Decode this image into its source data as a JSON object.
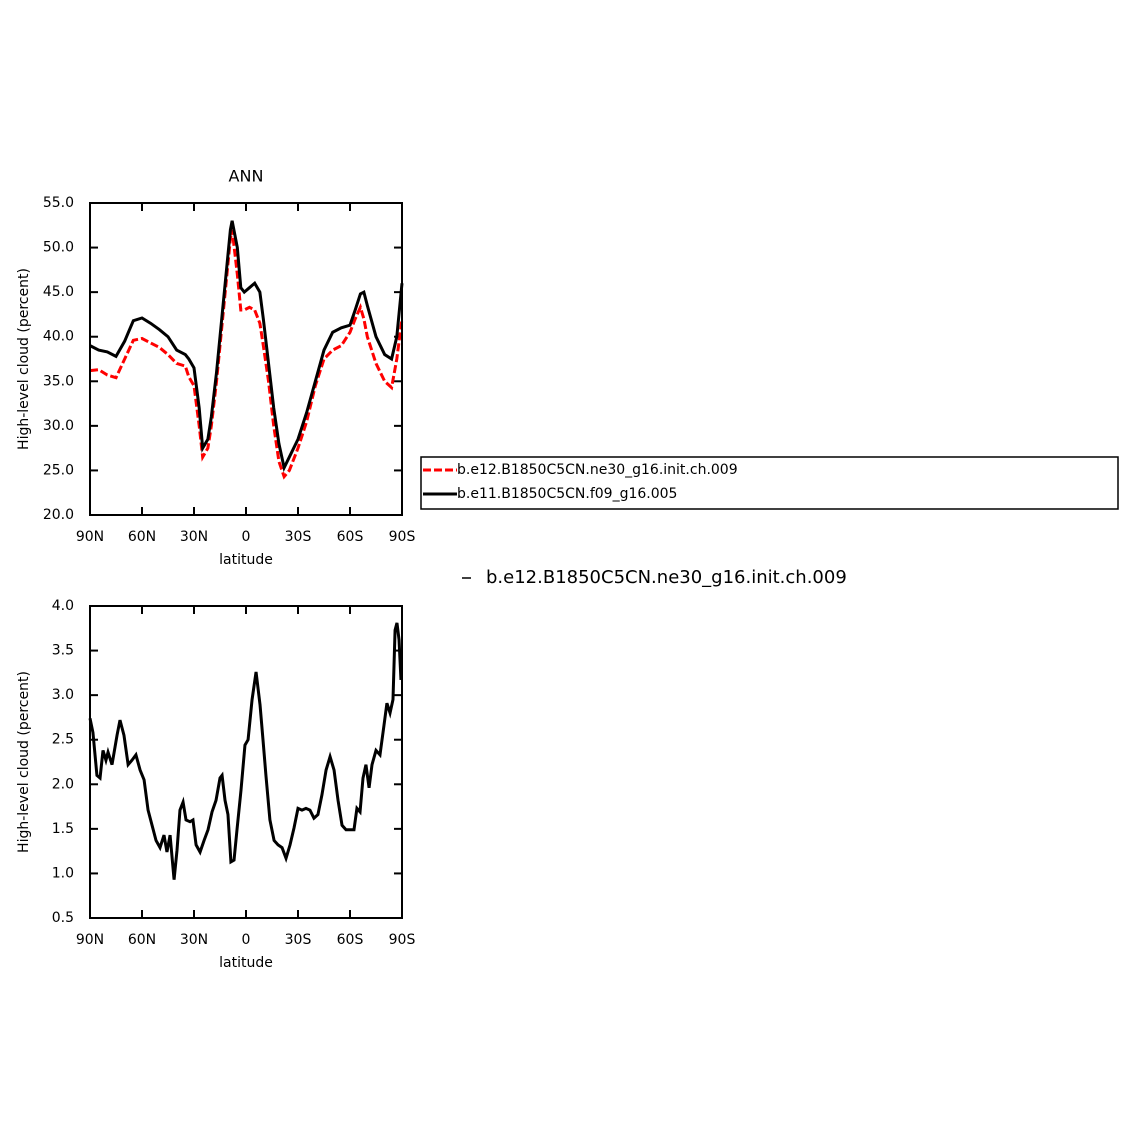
{
  "chart_data": [
    {
      "type": "line",
      "title": "ANN",
      "x_label": "latitude",
      "y_label": "High-level cloud (percent)",
      "x": [
        90,
        85,
        80,
        75,
        70,
        65,
        60,
        55,
        50,
        45,
        40,
        35,
        33,
        30,
        27,
        25,
        22,
        20,
        17,
        14,
        11,
        9,
        8,
        5,
        3,
        1,
        -2,
        -5,
        -8,
        -10,
        -13,
        -16,
        -19,
        -22,
        -25,
        -30,
        -35,
        -40,
        -45,
        -50,
        -55,
        -60,
        -63,
        -66,
        -68,
        -70,
        -75,
        -80,
        -84,
        -87,
        -90
      ],
      "series": [
        {
          "name": "b.e12.B1850C5CN.ne30_g16.init.ch.009",
          "color": "#ff0000",
          "dashed": true,
          "values": [
            36.2,
            36.3,
            35.7,
            35.4,
            37.5,
            39.6,
            39.8,
            39.3,
            38.8,
            38.0,
            37.0,
            36.7,
            35.5,
            34.5,
            30.0,
            26.5,
            27.5,
            30,
            35,
            41,
            47,
            51,
            52.0,
            47,
            43,
            43,
            43.3,
            43,
            41.5,
            39,
            35,
            30,
            26,
            24.3,
            25,
            27.5,
            30.5,
            34.5,
            37.5,
            38.5,
            39,
            40.5,
            42,
            43.3,
            42,
            40,
            37,
            35,
            34.3,
            37.5,
            42
          ]
        },
        {
          "name": "b.e11.B1850C5CN.f09_g16.005",
          "color": "#000000",
          "dashed": false,
          "values": [
            39.0,
            38.5,
            38.3,
            37.8,
            39.5,
            41.8,
            42.1,
            41.5,
            40.8,
            40.0,
            38.5,
            38.0,
            37.5,
            36.5,
            32,
            27.5,
            28.5,
            31,
            36,
            42,
            48,
            52,
            53,
            50,
            45.5,
            45,
            45.5,
            46,
            45,
            42,
            37,
            32,
            28,
            25.3,
            26.5,
            28.5,
            31.5,
            35,
            38.5,
            40.5,
            41,
            41.3,
            43,
            44.8,
            45,
            43.5,
            40,
            38,
            37.5,
            40,
            46
          ]
        }
      ],
      "xlim": [
        90,
        -90
      ],
      "xticks": [
        {
          "value": 90,
          "label": "90N"
        },
        {
          "value": 60,
          "label": "60N"
        },
        {
          "value": 30,
          "label": "30N"
        },
        0,
        {
          "value": -30,
          "label": "30S"
        },
        {
          "value": -60,
          "label": "60S"
        },
        {
          "value": -90,
          "label": "90S"
        }
      ],
      "ylim": [
        20,
        55
      ],
      "yticks": [
        {
          "value": 20,
          "label": "20.0"
        },
        {
          "value": 25,
          "label": "25.0"
        },
        {
          "value": 30,
          "label": "30.0"
        },
        {
          "value": 35,
          "label": "35.0"
        },
        {
          "value": 40,
          "label": "40.0"
        },
        {
          "value": 45,
          "label": "45.0"
        },
        {
          "value": 50,
          "label": "50.0"
        },
        {
          "value": 55,
          "label": "55.0"
        }
      ],
      "legend_box": true
    },
    {
      "type": "line",
      "x_label": "latitude",
      "y_label": "High-level cloud (percent)",
      "x": [
        90,
        88.3,
        86,
        84.2,
        82.5,
        80.8,
        79.6,
        77.3,
        74.4,
        72.7,
        70.4,
        68,
        65.8,
        63.5,
        61.1,
        58.8,
        56.5,
        54.2,
        51.9,
        49.6,
        47.3,
        45.6,
        43.8,
        41.5,
        39.8,
        38.1,
        36.3,
        34.6,
        32.3,
        30.6,
        28.8,
        26.5,
        24.2,
        21.9,
        19.6,
        17.3,
        15,
        13.8,
        12.1,
        10.4,
        8.7,
        6.9,
        5.2,
        2.9,
        0.6,
        -1.2,
        -3.5,
        -5.8,
        -8.1,
        -9.8,
        -11.5,
        -13.8,
        -16.2,
        -18.5,
        -20.8,
        -23.1,
        -25.4,
        -27.7,
        -30,
        -32.3,
        -34.6,
        -36.9,
        -39.2,
        -41.5,
        -43.8,
        -46.2,
        -48.5,
        -50.8,
        -53.1,
        -55.4,
        -57.7,
        -60,
        -62.3,
        -64,
        -65.8,
        -67.5,
        -69.2,
        -71,
        -72.7,
        -75,
        -77.3,
        -79.6,
        -81.3,
        -83.1,
        -84.8,
        -86,
        -87.1,
        -88.3,
        -89.4
      ],
      "series": [
        {
          "name": "b.e12.B1850C5CN.ne30_g16.init.ch.009",
          "color": "#000000",
          "dashed": false,
          "values": [
            2.74,
            2.58,
            2.1,
            2.07,
            2.38,
            2.27,
            2.36,
            2.22,
            2.55,
            2.72,
            2.55,
            2.22,
            2.27,
            2.33,
            2.16,
            2.05,
            1.71,
            1.54,
            1.37,
            1.29,
            1.43,
            1.24,
            1.43,
            0.93,
            1.26,
            1.71,
            1.8,
            1.6,
            1.58,
            1.6,
            1.32,
            1.24,
            1.37,
            1.49,
            1.69,
            1.82,
            2.07,
            2.1,
            1.82,
            1.66,
            1.13,
            1.15,
            1.49,
            1.93,
            2.44,
            2.5,
            2.95,
            3.26,
            2.89,
            2.5,
            2.1,
            1.6,
            1.37,
            1.32,
            1.29,
            1.17,
            1.32,
            1.51,
            1.73,
            1.71,
            1.73,
            1.71,
            1.62,
            1.66,
            1.88,
            2.16,
            2.31,
            2.16,
            1.82,
            1.54,
            1.49,
            1.49,
            1.49,
            1.73,
            1.69,
            2.07,
            2.22,
            1.96,
            2.22,
            2.38,
            2.33,
            2.66,
            2.91,
            2.8,
            2.95,
            3.73,
            3.81,
            3.62,
            3.17
          ]
        }
      ],
      "xlim": [
        90,
        -90
      ],
      "xticks": [
        {
          "value": 90,
          "label": "90N"
        },
        {
          "value": 60,
          "label": "60N"
        },
        {
          "value": 30,
          "label": "30N"
        },
        0,
        {
          "value": -30,
          "label": "30S"
        },
        {
          "value": -60,
          "label": "60S"
        },
        {
          "value": -90,
          "label": "90S"
        }
      ],
      "ylim": [
        0.5,
        4
      ],
      "yticks": [
        0.5,
        {
          "value": 1,
          "label": "1.0"
        },
        1.5,
        {
          "value": 2,
          "label": "2.0"
        },
        2.5,
        {
          "value": 3,
          "label": "3.0"
        },
        3.5,
        {
          "value": 4,
          "label": "4.0"
        }
      ],
      "legend_box": false
    }
  ]
}
